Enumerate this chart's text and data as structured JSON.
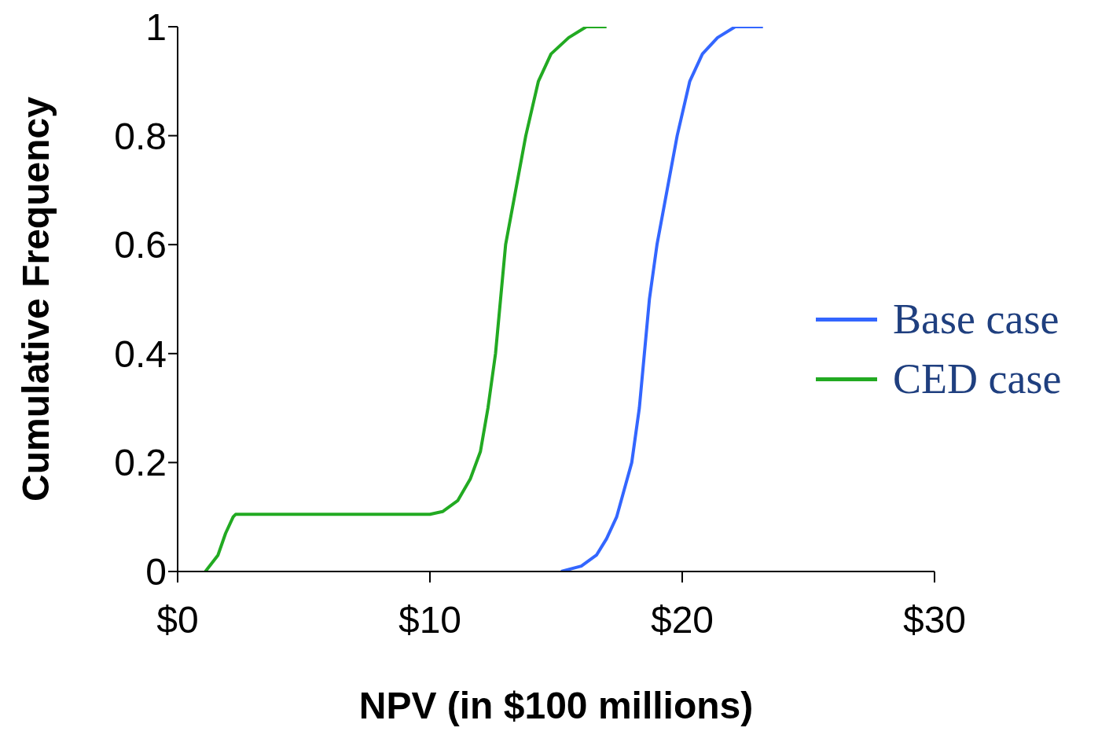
{
  "chart_data": {
    "type": "line",
    "xlabel": "NPV (in $100 millions)",
    "ylabel": "Cumulative Frequency",
    "xlim": [
      0,
      30
    ],
    "xticks": [
      {
        "value": 0,
        "label": "$0"
      },
      {
        "value": 10,
        "label": "$10"
      },
      {
        "value": 20,
        "label": "$20"
      },
      {
        "value": 30,
        "label": "$30"
      }
    ],
    "ylim": [
      0,
      1
    ],
    "yticks": [
      0,
      0.2,
      0.4,
      0.6,
      0.8,
      1
    ],
    "grid": false,
    "legend": "right",
    "marker": "none",
    "line_style": "solid",
    "series": [
      {
        "name": "Base case",
        "color": "#3366ff",
        "x": [
          15.2,
          16.0,
          16.6,
          17.0,
          17.4,
          17.7,
          18.0,
          18.3,
          18.5,
          18.7,
          19.0,
          19.4,
          19.8,
          20.3,
          20.8,
          21.4,
          22.1,
          23.2
        ],
        "values": [
          0,
          0.01,
          0.03,
          0.06,
          0.1,
          0.15,
          0.2,
          0.3,
          0.4,
          0.5,
          0.6,
          0.7,
          0.8,
          0.9,
          0.95,
          0.98,
          1,
          1
        ]
      },
      {
        "name": "CED case",
        "color": "#22aa22",
        "x": [
          1.1,
          1.6,
          1.9,
          2.2,
          2.3,
          10.0,
          10.5,
          11.1,
          11.6,
          12.0,
          12.3,
          12.6,
          12.8,
          13.0,
          13.4,
          13.8,
          14.3,
          14.8,
          15.5,
          16.2,
          17.0
        ],
        "values": [
          0,
          0.03,
          0.07,
          0.1,
          0.105,
          0.105,
          0.11,
          0.13,
          0.17,
          0.22,
          0.3,
          0.4,
          0.5,
          0.6,
          0.7,
          0.8,
          0.9,
          0.95,
          0.98,
          1,
          1
        ]
      }
    ]
  }
}
